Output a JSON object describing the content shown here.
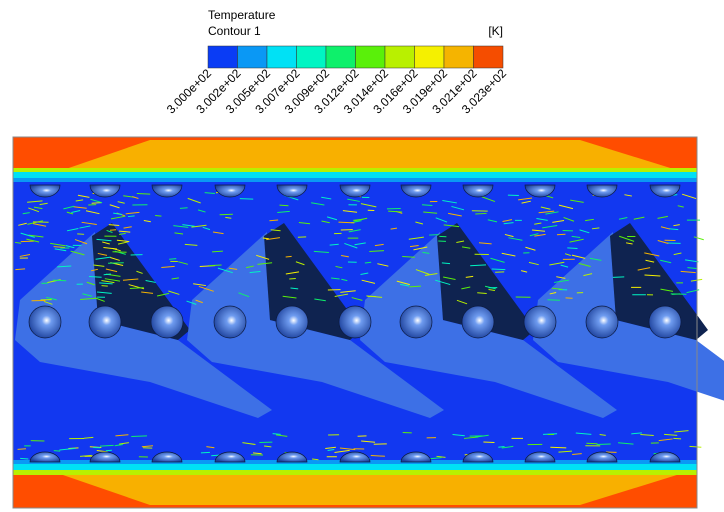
{
  "legend": {
    "title": "Temperature",
    "subtitle": "Contour 1",
    "unit": "[K]",
    "colors": [
      "#0a3cf5",
      "#0a98f5",
      "#00e1f5",
      "#00f5c3",
      "#0ef06b",
      "#5af00a",
      "#b9f000",
      "#f5f000",
      "#f5b400",
      "#f54d00"
    ],
    "ticks": [
      "3.000e+02",
      "3.002e+02",
      "3.005e+02",
      "3.007e+02",
      "3.009e+02",
      "3.012e+02",
      "3.014e+02",
      "3.016e+02",
      "3.019e+02",
      "3.021e+02",
      "3.023e+02"
    ]
  }
}
